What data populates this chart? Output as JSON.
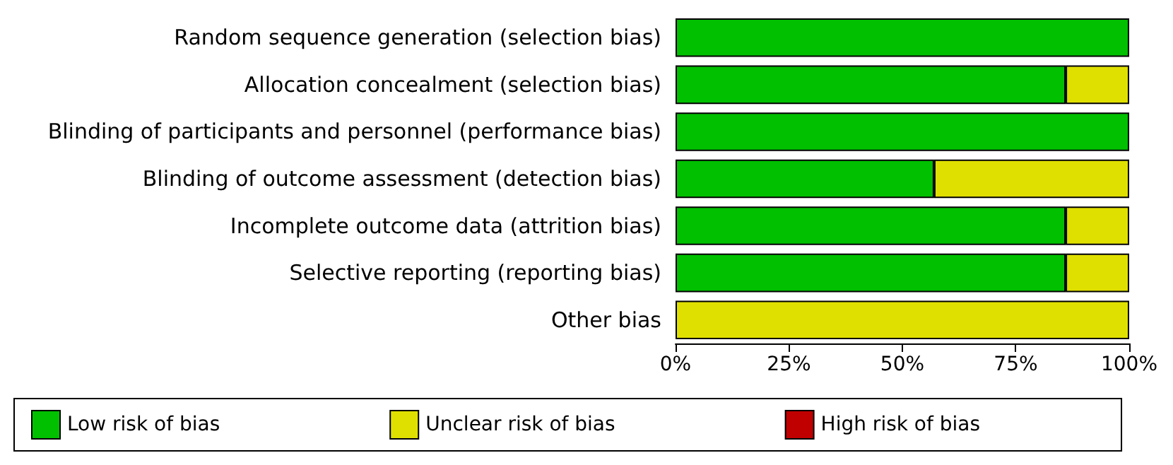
{
  "chart_data": {
    "type": "bar",
    "orientation": "horizontal",
    "stacked": true,
    "categories": [
      "Random sequence generation (selection bias)",
      "Allocation concealment (selection bias)",
      "Blinding of participants and personnel (performance bias)",
      "Blinding of outcome assessment (detection bias)",
      "Incomplete outcome data (attrition bias)",
      "Selective reporting (reporting bias)",
      "Other bias"
    ],
    "series": [
      {
        "name": "Low risk of bias",
        "color": "#00c000",
        "values": [
          100,
          86,
          100,
          57,
          86,
          86,
          0
        ]
      },
      {
        "name": "Unclear risk of bias",
        "color": "#e0e000",
        "values": [
          0,
          14,
          0,
          43,
          14,
          14,
          100
        ]
      },
      {
        "name": "High risk of bias",
        "color": "#c00000",
        "values": [
          0,
          0,
          0,
          0,
          0,
          0,
          0
        ]
      }
    ],
    "xlim": [
      0,
      100
    ],
    "xticks": [
      {
        "value": 0,
        "label": "0%"
      },
      {
        "value": 25,
        "label": "25%"
      },
      {
        "value": 50,
        "label": "50%"
      },
      {
        "value": 75,
        "label": "75%"
      },
      {
        "value": 100,
        "label": "100%"
      }
    ],
    "grid": false,
    "legend": "bottom"
  }
}
